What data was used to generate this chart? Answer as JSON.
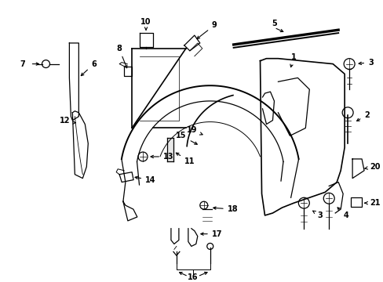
{
  "bg_color": "#ffffff",
  "line_color": "#000000",
  "figsize": [
    4.89,
    3.6
  ],
  "dpi": 100,
  "font_size": 7.0
}
